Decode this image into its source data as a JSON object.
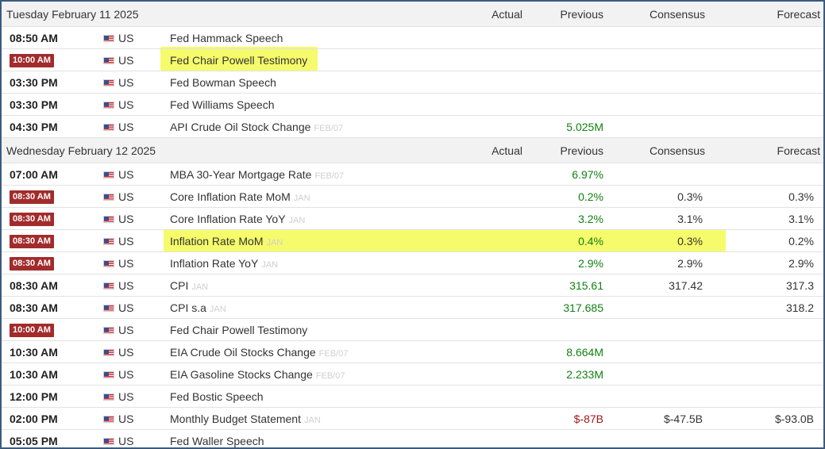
{
  "columns": {
    "actual": "Actual",
    "previous": "Previous",
    "consensus": "Consensus",
    "forecast": "Forecast"
  },
  "days": [
    {
      "title": "Tuesday February 11 2025",
      "events": [
        {
          "time": "08:50 AM",
          "badge": false,
          "country": "US",
          "event": "Fed Hammack Speech",
          "ref": "",
          "actual": "",
          "previous": "",
          "consensus": "",
          "forecast": ""
        },
        {
          "time": "10:00 AM",
          "badge": true,
          "country": "US",
          "event": "Fed Chair Powell Testimony",
          "ref": "",
          "actual": "",
          "previous": "",
          "consensus": "",
          "forecast": "",
          "highlight": "event"
        },
        {
          "time": "03:30 PM",
          "badge": false,
          "country": "US",
          "event": "Fed Bowman Speech",
          "ref": "",
          "actual": "",
          "previous": "",
          "consensus": "",
          "forecast": ""
        },
        {
          "time": "03:30 PM",
          "badge": false,
          "country": "US",
          "event": "Fed Williams Speech",
          "ref": "",
          "actual": "",
          "previous": "",
          "consensus": "",
          "forecast": ""
        },
        {
          "time": "04:30 PM",
          "badge": false,
          "country": "US",
          "event": "API Crude Oil Stock Change",
          "ref": "FEB/07",
          "actual": "",
          "previous": "5.025M",
          "previous_color": "green",
          "consensus": "",
          "forecast": ""
        }
      ]
    },
    {
      "title": "Wednesday February 12 2025",
      "events": [
        {
          "time": "07:00 AM",
          "badge": false,
          "country": "US",
          "event": "MBA 30-Year Mortgage Rate",
          "ref": "FEB/07",
          "actual": "",
          "previous": "6.97%",
          "previous_color": "green",
          "consensus": "",
          "forecast": ""
        },
        {
          "time": "08:30 AM",
          "badge": true,
          "country": "US",
          "event": "Core Inflation Rate MoM",
          "ref": "JAN",
          "actual": "",
          "previous": "0.2%",
          "previous_color": "green",
          "consensus": "0.3%",
          "forecast": "0.3%"
        },
        {
          "time": "08:30 AM",
          "badge": true,
          "country": "US",
          "event": "Core Inflation Rate YoY",
          "ref": "JAN",
          "actual": "",
          "previous": "3.2%",
          "previous_color": "green",
          "consensus": "3.1%",
          "forecast": "3.1%"
        },
        {
          "time": "08:30 AM",
          "badge": true,
          "country": "US",
          "event": "Inflation Rate MoM",
          "ref": "JAN",
          "actual": "",
          "previous": "0.4%",
          "previous_color": "green",
          "consensus": "0.3%",
          "forecast": "0.2%",
          "highlight": "row"
        },
        {
          "time": "08:30 AM",
          "badge": true,
          "country": "US",
          "event": "Inflation Rate YoY",
          "ref": "JAN",
          "actual": "",
          "previous": "2.9%",
          "previous_color": "green",
          "consensus": "2.9%",
          "forecast": "2.9%"
        },
        {
          "time": "08:30 AM",
          "badge": false,
          "country": "US",
          "event": "CPI",
          "ref": "JAN",
          "actual": "",
          "previous": "315.61",
          "previous_color": "green",
          "consensus": "317.42",
          "forecast": "317.3"
        },
        {
          "time": "08:30 AM",
          "badge": false,
          "country": "US",
          "event": "CPI s.a",
          "ref": "JAN",
          "actual": "",
          "previous": "317.685",
          "previous_color": "green",
          "consensus": "",
          "forecast": "318.2"
        },
        {
          "time": "10:00 AM",
          "badge": true,
          "country": "US",
          "event": "Fed Chair Powell Testimony",
          "ref": "",
          "actual": "",
          "previous": "",
          "consensus": "",
          "forecast": ""
        },
        {
          "time": "10:30 AM",
          "badge": false,
          "country": "US",
          "event": "EIA Crude Oil Stocks Change",
          "ref": "FEB/07",
          "actual": "",
          "previous": "8.664M",
          "previous_color": "green",
          "consensus": "",
          "forecast": ""
        },
        {
          "time": "10:30 AM",
          "badge": false,
          "country": "US",
          "event": "EIA Gasoline Stocks Change",
          "ref": "FEB/07",
          "actual": "",
          "previous": "2.233M",
          "previous_color": "green",
          "consensus": "",
          "forecast": ""
        },
        {
          "time": "12:00 PM",
          "badge": false,
          "country": "US",
          "event": "Fed Bostic Speech",
          "ref": "",
          "actual": "",
          "previous": "",
          "consensus": "",
          "forecast": ""
        },
        {
          "time": "02:00 PM",
          "badge": false,
          "country": "US",
          "event": "Monthly Budget Statement",
          "ref": "JAN",
          "actual": "",
          "previous": "$-87B",
          "previous_color": "red",
          "consensus": "$-47.5B",
          "forecast": "$-93.0B"
        },
        {
          "time": "05:05 PM",
          "badge": false,
          "country": "US",
          "event": "Fed Waller Speech",
          "ref": "",
          "actual": "",
          "previous": "",
          "consensus": "",
          "forecast": ""
        }
      ]
    }
  ],
  "icons": {
    "flag": "us-flag-icon"
  },
  "colors": {
    "badge": "#a22b2b",
    "positive": "#128012",
    "negative": "#a01818",
    "highlight": "#f5fb6a",
    "border": "#3c5a7e"
  }
}
